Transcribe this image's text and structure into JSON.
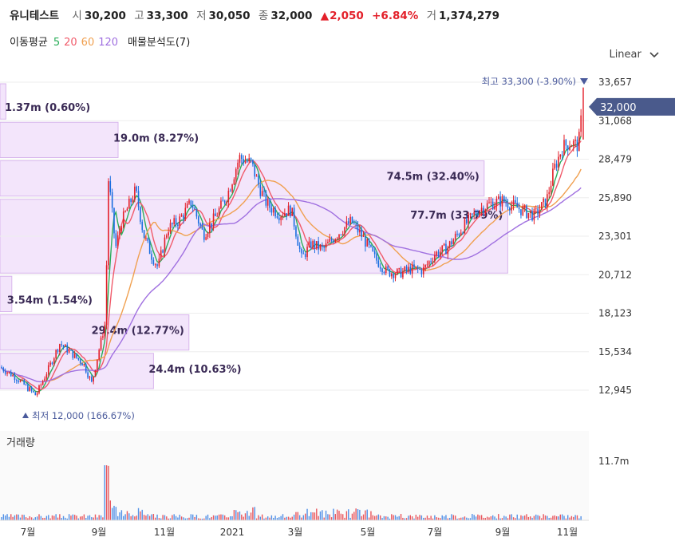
{
  "header": {
    "name": "유니테스트",
    "open_label": "시",
    "open": "30,200",
    "high_label": "고",
    "high": "33,300",
    "low_label": "저",
    "low": "30,050",
    "close_label": "종",
    "close": "32,000",
    "change_arrow": "▲",
    "change": "2,050",
    "change_pct": "+6.84%",
    "volume_label": "거",
    "volume": "1,374,279"
  },
  "ma_legend": {
    "label": "이동평균",
    "p5": "5",
    "p20": "20",
    "p60": "60",
    "p120": "120",
    "profile_label": "매물분석도(7)"
  },
  "scale_button": "Linear",
  "colors": {
    "up": "#e3202a",
    "down": "#1a6ee0",
    "ma5": "#2bae5a",
    "ma20": "#f05a6a",
    "ma60": "#f0a050",
    "ma120": "#a070e0",
    "profile": "#f3e5fb",
    "profile_border": "#d8b6ec",
    "current": "#4a5a8c"
  },
  "chart_data": {
    "type": "candlestick",
    "y_ticks": [
      "33,657",
      "31,068",
      "28,479",
      "25,890",
      "23,301",
      "20,712",
      "18,123",
      "15,534",
      "12,945"
    ],
    "ylim": [
      11000,
      35000
    ],
    "x_ticks": [
      "7월",
      "9월",
      "11월",
      "2021",
      "3월",
      "5월",
      "7월",
      "9월",
      "11월"
    ],
    "current_price": "32,000",
    "high_annotation": {
      "label": "최고",
      "value": "33,300",
      "pct": "(-3.90%)"
    },
    "low_annotation": {
      "label": "최저",
      "value": "12,000",
      "pct": "(166.67%)"
    },
    "volume_label": "거래량",
    "volume_tick": "11.7m",
    "volume_profile": [
      {
        "label": "1.37m (0.60%)",
        "low": 31068,
        "high": 33657
      },
      {
        "label": "19.0m (8.27%)",
        "low": 28479,
        "high": 31068
      },
      {
        "label": "74.5m (32.40%)",
        "low": 25890,
        "high": 28479
      },
      {
        "label": "77.7m (33.79%)",
        "low": 20712,
        "high": 25890
      },
      {
        "label": "3.54m (1.54%)",
        "low": 18123,
        "high": 20712
      },
      {
        "label": "29.4m (12.77%)",
        "low": 15534,
        "high": 18123
      },
      {
        "label": "24.4m (10.63%)",
        "low": 12945,
        "high": 15534
      }
    ],
    "price_path": [
      [
        0,
        14500
      ],
      [
        20,
        13800
      ],
      [
        45,
        12600
      ],
      [
        60,
        14300
      ],
      [
        75,
        16100
      ],
      [
        90,
        15400
      ],
      [
        105,
        14700
      ],
      [
        115,
        13400
      ],
      [
        125,
        15900
      ],
      [
        132,
        17500
      ],
      [
        136,
        27200
      ],
      [
        145,
        22500
      ],
      [
        152,
        24200
      ],
      [
        160,
        25200
      ],
      [
        170,
        26400
      ],
      [
        180,
        23400
      ],
      [
        190,
        22000
      ],
      [
        198,
        21200
      ],
      [
        210,
        23800
      ],
      [
        225,
        24400
      ],
      [
        240,
        25600
      ],
      [
        255,
        23400
      ],
      [
        270,
        24600
      ],
      [
        285,
        26100
      ],
      [
        300,
        28600
      ],
      [
        315,
        28200
      ],
      [
        325,
        26600
      ],
      [
        335,
        25400
      ],
      [
        350,
        24800
      ],
      [
        365,
        25100
      ],
      [
        378,
        21800
      ],
      [
        390,
        22800
      ],
      [
        405,
        22400
      ],
      [
        420,
        23300
      ],
      [
        440,
        24300
      ],
      [
        455,
        23200
      ],
      [
        470,
        21800
      ],
      [
        485,
        20900
      ],
      [
        500,
        20800
      ],
      [
        515,
        21100
      ],
      [
        530,
        21000
      ],
      [
        545,
        22100
      ],
      [
        560,
        22500
      ],
      [
        580,
        23900
      ],
      [
        600,
        25100
      ],
      [
        615,
        25500
      ],
      [
        630,
        25700
      ],
      [
        645,
        25300
      ],
      [
        660,
        24900
      ],
      [
        670,
        24700
      ],
      [
        685,
        25700
      ],
      [
        695,
        27900
      ],
      [
        705,
        29300
      ],
      [
        715,
        29600
      ],
      [
        725,
        29400
      ],
      [
        730,
        32000
      ]
    ]
  }
}
